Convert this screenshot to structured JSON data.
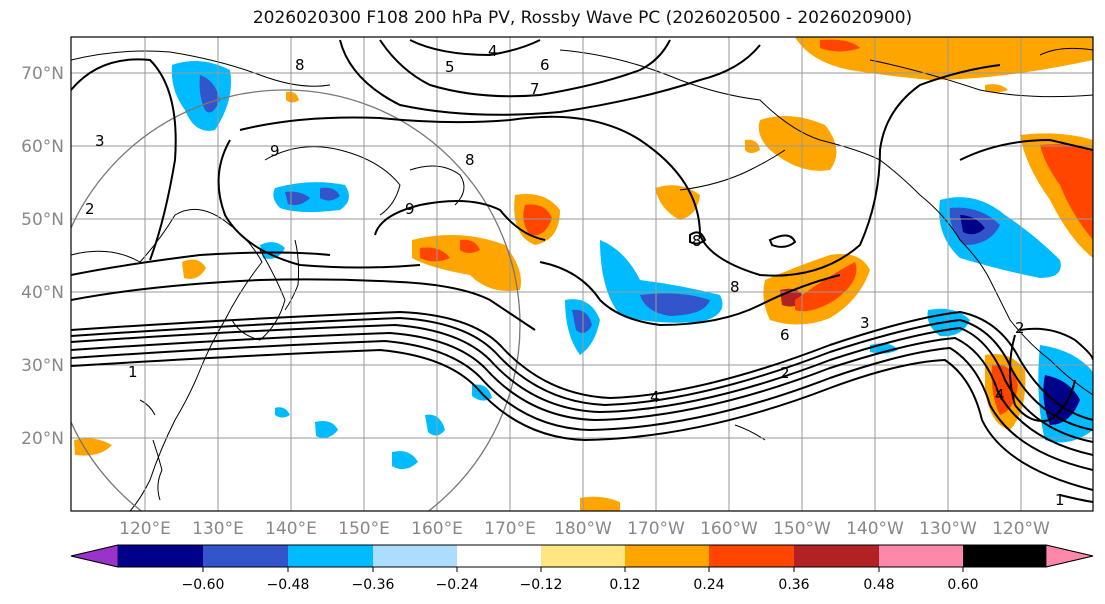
{
  "title": "2026020300 F108 200 hPa PV, Rossby Wave PC (2026020500 - 2026020900)",
  "lat_labels": [
    "70°N",
    "60°N",
    "50°N",
    "40°N",
    "30°N",
    "20°N"
  ],
  "lon_labels": [
    "120°E",
    "130°E",
    "140°E",
    "150°E",
    "160°E",
    "170°E",
    "180°W",
    "170°W",
    "160°W",
    "150°W",
    "140°W",
    "130°W",
    "120°W"
  ],
  "colorbar": {
    "colors": [
      "#9933cc",
      "#000088",
      "#3355cc",
      "#00bbff",
      "#aaddff",
      "#ffffff",
      "#ffe680",
      "#ffa500",
      "#ff4500",
      "#b22222",
      "#ff88aa"
    ],
    "tick_labels": [
      "−0.60",
      "−0.48",
      "−0.36",
      "−0.24",
      "−0.12",
      "0.12",
      "0.24",
      "0.36",
      "0.48",
      "0.60"
    ]
  },
  "contour_labels": [
    "1",
    "2",
    "3",
    "4",
    "4",
    "5",
    "6",
    "6",
    "7",
    "8",
    "8",
    "8",
    "8",
    "9",
    "9",
    "2",
    "3",
    "1",
    "2",
    "4"
  ],
  "colors": {
    "frame": "#000000",
    "grid": "#999999",
    "circle": "#777777"
  }
}
